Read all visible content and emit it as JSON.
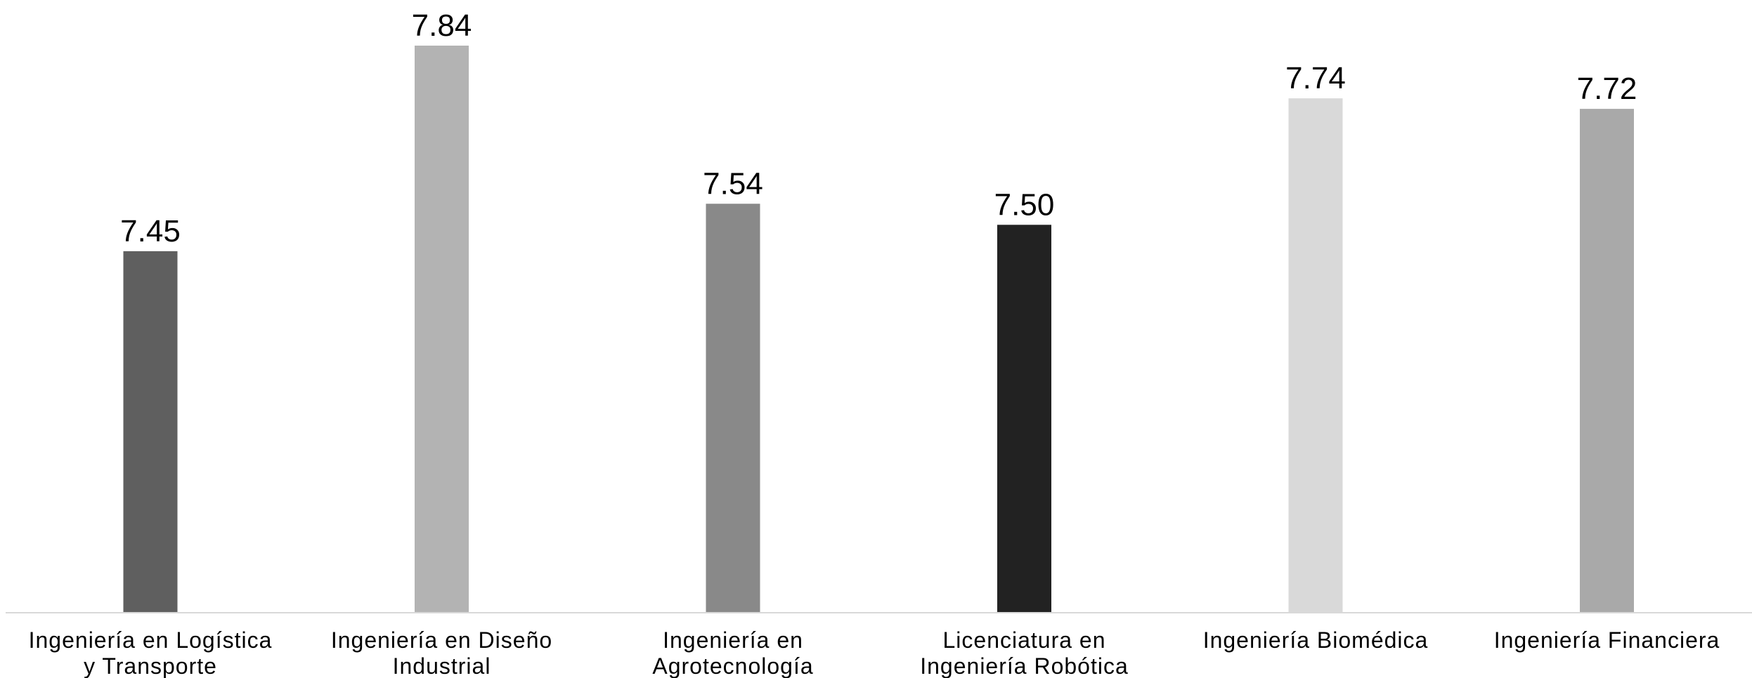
{
  "chart_data": {
    "type": "bar",
    "title": "",
    "xlabel": "",
    "ylabel": "",
    "categories": [
      [
        "Ingeniería en Logística",
        "y Transporte"
      ],
      [
        "Ingeniería en Diseño",
        "Industrial"
      ],
      [
        "Ingeniería en",
        "Agrotecnología"
      ],
      [
        "Licenciatura en",
        "Ingeniería Robótica"
      ],
      [
        "Ingeniería Biomédica"
      ],
      [
        "Ingeniería Financiera"
      ]
    ],
    "values": [
      7.45,
      7.84,
      7.54,
      7.5,
      7.74,
      7.72
    ],
    "value_labels": [
      "7.45",
      "7.84",
      "7.54",
      "7.50",
      "7.74",
      "7.72"
    ],
    "bar_colors": [
      "#5f5f5f",
      "#b3b3b3",
      "#898989",
      "#222222",
      "#d9d9d9",
      "#a9a9a9"
    ],
    "axis_color": "#d9d9d9",
    "grid": false,
    "legend": "none",
    "y_axis_visible": false
  }
}
